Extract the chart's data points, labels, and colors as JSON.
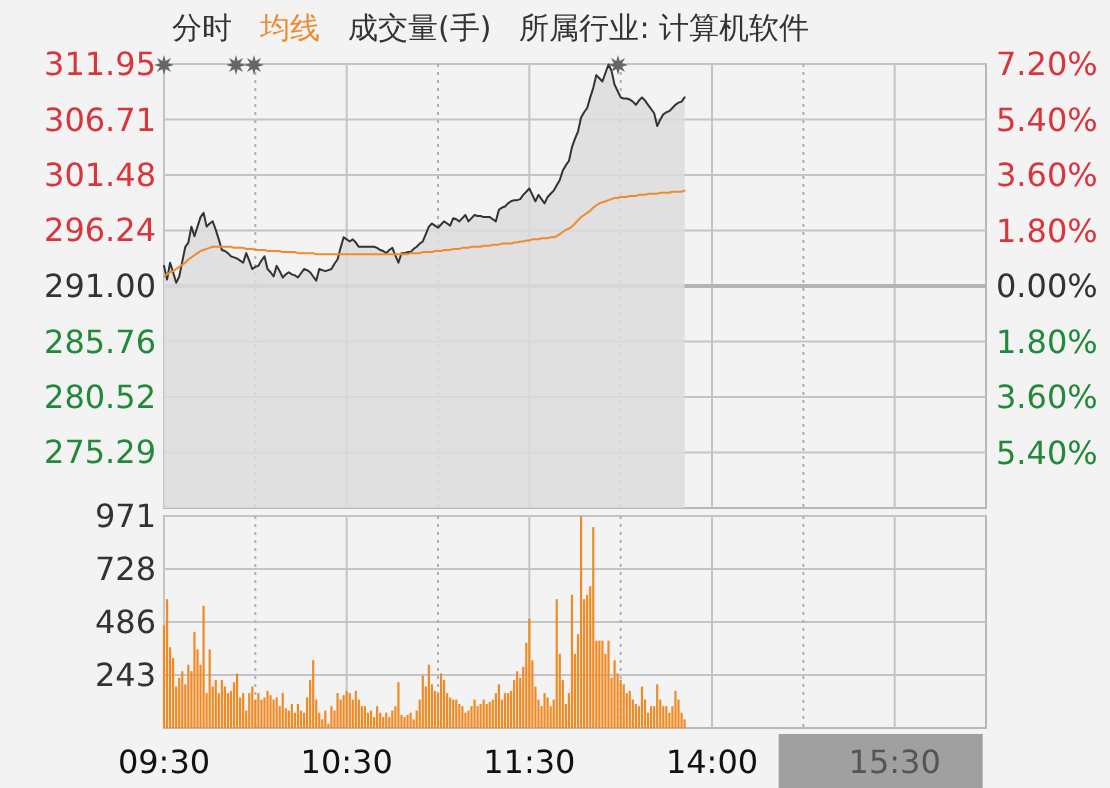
{
  "chart_data": [
    {
      "type": "line",
      "annotations": [
        "所属行业: 计算机软件"
      ],
      "legend": "top",
      "grid": true,
      "tick_labels": "y",
      "categories": [
        null,
        null,
        null,
        null,
        null,
        null,
        null,
        null,
        null,
        null,
        null,
        null,
        null,
        null,
        null,
        null,
        null,
        null,
        null,
        null,
        null,
        null,
        null,
        null,
        null,
        null,
        null,
        null,
        null,
        null,
        null,
        null,
        null,
        null,
        null,
        null,
        null,
        null,
        null,
        null,
        null,
        null,
        null,
        null,
        null,
        null,
        null,
        null,
        null,
        null,
        null,
        null,
        null,
        null,
        null,
        null,
        null,
        null,
        null,
        null,
        null,
        null,
        null,
        null,
        null,
        null,
        null,
        null,
        null,
        null,
        null,
        null,
        null,
        null,
        null,
        null,
        null,
        null,
        null,
        null,
        null,
        null,
        null,
        null,
        null,
        null,
        null,
        null,
        null,
        null,
        null,
        null,
        null,
        null,
        null,
        null,
        null,
        null,
        null,
        null,
        null,
        null,
        null,
        null,
        null,
        null,
        null,
        null,
        null,
        null,
        null,
        null,
        null,
        null,
        null,
        null,
        null,
        null,
        null,
        null,
        null,
        null,
        null,
        null,
        null,
        null,
        null,
        null,
        null,
        null,
        null,
        null,
        null,
        null,
        null,
        null,
        null,
        null,
        null,
        null,
        null,
        null,
        null,
        null,
        null,
        null,
        null,
        null,
        null,
        null,
        null,
        null,
        null,
        null,
        null,
        null,
        null,
        null,
        null,
        null,
        null,
        null,
        null,
        null,
        null,
        null,
        null,
        null,
        null,
        null,
        null,
        null,
        null,
        null,
        null,
        null,
        null,
        null,
        null,
        null,
        null,
        null,
        null,
        null,
        null,
        null,
        null,
        null,
        null,
        null,
        null,
        null,
        null,
        null,
        null,
        null,
        null,
        null,
        null,
        null,
        null,
        null,
        null,
        null,
        null,
        null,
        null,
        null,
        null,
        null,
        null,
        null,
        null,
        null,
        null,
        null,
        null,
        null,
        null,
        null,
        null,
        null,
        null,
        null,
        null,
        null,
        null,
        null,
        null,
        null,
        null,
        null,
        null,
        null,
        null,
        null,
        null,
        null,
        null,
        null,
        null,
        null,
        null,
        null,
        null,
        null,
        null,
        null,
        null,
        null,
        null,
        null,
        null,
        null,
        null,
        null,
        null,
        null,
        null,
        null,
        null,
        null,
        null,
        null,
        null,
        null,
        null,
        null,
        null,
        null,
        null
      ],
      "ylim": [
        270.05,
        311.95
      ],
      "yticks": [
        {
          "value": 275.29,
          "label": "275.29"
        },
        {
          "value": 280.52,
          "label": "280.52"
        },
        {
          "value": 285.76,
          "label": "285.76"
        },
        {
          "value": 291,
          "label": "291.00"
        },
        {
          "value": 296.24,
          "label": "296.24"
        },
        {
          "value": 301.48,
          "label": "301.48"
        },
        {
          "value": 306.71,
          "label": "306.71"
        },
        {
          "value": 311.95,
          "label": "311.95"
        }
      ],
      "y2lim": [
        -7.2,
        7.2
      ],
      "y2ticks": [
        {
          "value": -5.4,
          "label": "5.40%"
        },
        {
          "value": -3.6,
          "label": "3.60%"
        },
        {
          "value": -1.8,
          "label": "1.80%"
        },
        {
          "value": 0,
          "label": "0.00%"
        },
        {
          "value": 1.8,
          "label": "1.80%"
        },
        {
          "value": 3.6,
          "label": "3.60%"
        },
        {
          "value": 5.4,
          "label": "5.40%"
        },
        {
          "value": 7.2,
          "label": "7.20%"
        }
      ],
      "ref_lines": [
        {
          "axis": "y",
          "value": 291,
          "color": "#b4b4b4"
        }
      ],
      "series": [
        {
          "name": "分时",
          "type": "area",
          "color": "#333333",
          "values": [
            292.9,
            291.6,
            293.2,
            292.3,
            291.3,
            291.9,
            293.3,
            294.7,
            295.1,
            296.6,
            295.7,
            296.6,
            297.5,
            297.9,
            296.6,
            296.9,
            297.1,
            296.3,
            295.4,
            294.4,
            294.3,
            294.1,
            293.8,
            293.7,
            293.6,
            293.4,
            293.2,
            294.1,
            293.4,
            292.6,
            292.8,
            292.9,
            293.4,
            293.8,
            292.6,
            292.3,
            291.9,
            292.9,
            292.4,
            291.8,
            292.1,
            292.3,
            292.1,
            292,
            291.8,
            292.2,
            292.6,
            292.5,
            292.3,
            291.9,
            291.5,
            292.6,
            292.5,
            292.4,
            292.5,
            292.6,
            293.1,
            293.5,
            294.6,
            295.6,
            295.4,
            295.2,
            295.4,
            295.1,
            294.7,
            294.7,
            294.7,
            294.7,
            294.7,
            294.7,
            294.6,
            294.4,
            294.3,
            294.1,
            294.4,
            294.6,
            293.9,
            293.2,
            294.1,
            294.1,
            294.2,
            294.2,
            294.5,
            294.7,
            295,
            295.2,
            295.9,
            296.6,
            296.9,
            296.7,
            296.5,
            296.8,
            297.1,
            296.9,
            296.7,
            297.4,
            297.3,
            297.1,
            297.4,
            297.7,
            297.1,
            297.4,
            297.7,
            297.6,
            297.6,
            297.5,
            297.5,
            297.5,
            297.3,
            297.1,
            298.2,
            298.4,
            298.5,
            298.8,
            299,
            299.1,
            299.1,
            299.2,
            299.6,
            299.9,
            300.2,
            299.6,
            299,
            299.6,
            299.2,
            298.8,
            299.4,
            299.7,
            300,
            300.5,
            301,
            301.9,
            302.4,
            302.8,
            304.1,
            304.9,
            305.6,
            306.9,
            307.4,
            307.8,
            308.8,
            309.7,
            310.9,
            310.6,
            310.3,
            311.1,
            311.9,
            311.3,
            310,
            309.4,
            308.8,
            308.7,
            308.7,
            308.6,
            308.4,
            308.1,
            308.5,
            308.8,
            308.5,
            308.1,
            307.7,
            307.3,
            306.1,
            306.7,
            307.2,
            307.4,
            307.5,
            307.8,
            308.1,
            308.3,
            308.4,
            308.8,
            null,
            null,
            null,
            null,
            null,
            null,
            null,
            null,
            null,
            null,
            null,
            null,
            null,
            null,
            null,
            null,
            null,
            null,
            null,
            null,
            null,
            null,
            null,
            null,
            null,
            null,
            null,
            null,
            null,
            null,
            null,
            null,
            null,
            null,
            null,
            null,
            null,
            null,
            null,
            null,
            null,
            null,
            null,
            null,
            null,
            null,
            null,
            null,
            null,
            null,
            null,
            null,
            null,
            null,
            null,
            null,
            null,
            null,
            null,
            null,
            null,
            null,
            null,
            null,
            null,
            null,
            null,
            null,
            null,
            null,
            null,
            null,
            null,
            null,
            null,
            null,
            null,
            null,
            null,
            null,
            null,
            null,
            null,
            null,
            null,
            null,
            null,
            null,
            null,
            null,
            null,
            null,
            null,
            null,
            null,
            null,
            null,
            null,
            null
          ]
        },
        {
          "name": "均线",
          "color": "#ef8a2e",
          "values": [
            291.9,
            292.1,
            292.3,
            292.4,
            292.6,
            292.8,
            293,
            293.2,
            293.5,
            293.7,
            293.9,
            294.1,
            294.3,
            294.4,
            294.5,
            294.6,
            294.7,
            294.7,
            294.7,
            294.7,
            294.7,
            294.7,
            294.7,
            294.6,
            294.6,
            294.6,
            294.6,
            294.5,
            294.5,
            294.5,
            294.4,
            294.4,
            294.4,
            294.4,
            294.3,
            294.3,
            294.3,
            294.3,
            294.3,
            294.2,
            294.2,
            294.2,
            294.2,
            294.2,
            294.1,
            294.1,
            294.1,
            294.1,
            294.1,
            294.1,
            294,
            294,
            294,
            294,
            294,
            294,
            294,
            294,
            294,
            294,
            294,
            294,
            294,
            294,
            294,
            294,
            294,
            294,
            294,
            294,
            294,
            294,
            294,
            294,
            294,
            294,
            294,
            294,
            294,
            294,
            294,
            294.1,
            294.1,
            294.1,
            294.1,
            294.2,
            294.2,
            294.2,
            294.2,
            294.3,
            294.3,
            294.3,
            294.4,
            294.4,
            294.4,
            294.5,
            294.5,
            294.5,
            294.6,
            294.6,
            294.6,
            294.7,
            294.7,
            294.7,
            294.7,
            294.8,
            294.8,
            294.8,
            294.9,
            294.9,
            294.9,
            295,
            295,
            295,
            295,
            295.1,
            295.1,
            295.2,
            295.2,
            295.3,
            295.3,
            295.4,
            295.4,
            295.4,
            295.5,
            295.5,
            295.5,
            295.6,
            295.6,
            295.7,
            295.9,
            296.1,
            296.3,
            296.4,
            296.6,
            296.9,
            297.2,
            297.5,
            297.7,
            297.9,
            298.1,
            298.4,
            298.6,
            298.8,
            298.9,
            299,
            299.1,
            299.2,
            299.3,
            299.3,
            299.4,
            299.4,
            299.4,
            299.5,
            299.5,
            299.5,
            299.6,
            299.6,
            299.6,
            299.7,
            299.7,
            299.7,
            299.7,
            299.8,
            299.8,
            299.8,
            299.8,
            299.9,
            299.9,
            299.9,
            299.9,
            300,
            null,
            null,
            null,
            null,
            null,
            null,
            null,
            null,
            null,
            null,
            null,
            null,
            null,
            null,
            null,
            null,
            null,
            null,
            null,
            null,
            null,
            null,
            null,
            null,
            null,
            null,
            null,
            null,
            null,
            null,
            null,
            null,
            null,
            null,
            null,
            null,
            null,
            null,
            null,
            null,
            null,
            null,
            null,
            null,
            null,
            null,
            null,
            null,
            null,
            null,
            null,
            null,
            null,
            null,
            null,
            null,
            null,
            null,
            null,
            null,
            null,
            null,
            null,
            null,
            null,
            null,
            null,
            null,
            null,
            null,
            null,
            null,
            null,
            null,
            null,
            null,
            null,
            null,
            null,
            null,
            null,
            null,
            null,
            null,
            null,
            null,
            null,
            null,
            null,
            null,
            null,
            null,
            null,
            null,
            null,
            null,
            null,
            null,
            null
          ]
        }
      ]
    },
    {
      "type": "bar",
      "legend": "top",
      "grid": true,
      "categories": [
        "09:30",
        null,
        null,
        null,
        null,
        null,
        null,
        null,
        null,
        null,
        null,
        null,
        null,
        null,
        null,
        null,
        null,
        null,
        null,
        null,
        null,
        null,
        null,
        null,
        null,
        null,
        null,
        null,
        null,
        null,
        null,
        null,
        null,
        null,
        null,
        null,
        null,
        null,
        null,
        null,
        null,
        null,
        null,
        null,
        null,
        null,
        null,
        null,
        null,
        null,
        null,
        null,
        null,
        null,
        null,
        null,
        null,
        null,
        null,
        null,
        "10:30",
        null,
        null,
        null,
        null,
        null,
        null,
        null,
        null,
        null,
        null,
        null,
        null,
        null,
        null,
        null,
        null,
        null,
        null,
        null,
        null,
        null,
        null,
        null,
        null,
        null,
        null,
        null,
        null,
        null,
        null,
        null,
        null,
        null,
        null,
        null,
        null,
        null,
        null,
        null,
        null,
        null,
        null,
        null,
        null,
        null,
        null,
        null,
        null,
        null,
        null,
        null,
        null,
        null,
        null,
        null,
        null,
        null,
        null,
        null,
        "11:30",
        null,
        null,
        null,
        null,
        null,
        null,
        null,
        null,
        null,
        null,
        null,
        null,
        null,
        null,
        null,
        null,
        null,
        null,
        null,
        null,
        null,
        null,
        null,
        null,
        null,
        null,
        null,
        null,
        null,
        null,
        null,
        null,
        null,
        null,
        null,
        null,
        null,
        null,
        null,
        null,
        null,
        null,
        null,
        null,
        null,
        null,
        null,
        null,
        null,
        null,
        null,
        null,
        null,
        null,
        null,
        null,
        null,
        null,
        null,
        "14:00",
        null,
        null,
        null,
        null,
        null,
        null,
        null,
        null,
        null,
        null,
        null,
        null,
        null,
        null,
        null,
        null,
        null,
        null,
        null,
        null,
        null,
        null,
        null,
        null,
        null,
        null,
        null,
        null,
        null,
        null,
        null,
        null,
        null,
        null,
        null,
        null,
        null,
        null,
        null,
        null,
        null,
        null,
        null,
        null,
        null,
        null,
        null,
        null,
        null,
        null,
        null,
        null,
        null,
        null,
        null,
        null,
        null,
        null,
        null,
        "15:30",
        null,
        null,
        null,
        null,
        null,
        null,
        null,
        null,
        null,
        null,
        null,
        null,
        null,
        null,
        null,
        null,
        null,
        null,
        null,
        null,
        null,
        null,
        null,
        null,
        null,
        null,
        null,
        null,
        null,
        null
      ],
      "ylim": [
        0,
        971
      ],
      "yticks": [
        243,
        486,
        728,
        971
      ],
      "series": [
        {
          "name": "成交量(手)",
          "color": "#f08a24",
          "values": [
            470,
            590,
            370,
            320,
            190,
            230,
            260,
            200,
            290,
            260,
            440,
            360,
            290,
            560,
            160,
            360,
            190,
            220,
            160,
            220,
            190,
            160,
            170,
            210,
            250,
            140,
            160,
            80,
            160,
            190,
            130,
            160,
            130,
            140,
            170,
            150,
            130,
            140,
            100,
            160,
            90,
            80,
            110,
            70,
            110,
            80,
            70,
            140,
            220,
            310,
            130,
            70,
            40,
            80,
            20,
            100,
            80,
            160,
            130,
            150,
            170,
            160,
            130,
            170,
            130,
            100,
            100,
            70,
            80,
            50,
            100,
            70,
            50,
            70,
            50,
            80,
            100,
            210,
            60,
            50,
            60,
            70,
            40,
            80,
            130,
            240,
            190,
            290,
            200,
            170,
            160,
            250,
            220,
            160,
            140,
            130,
            130,
            110,
            100,
            70,
            80,
            100,
            130,
            100,
            110,
            130,
            110,
            120,
            130,
            160,
            200,
            130,
            160,
            160,
            170,
            220,
            260,
            230,
            280,
            390,
            500,
            310,
            190,
            130,
            100,
            160,
            140,
            100,
            130,
            590,
            340,
            220,
            110,
            160,
            610,
            340,
            430,
            970,
            590,
            610,
            650,
            920,
            400,
            400,
            400,
            340,
            400,
            230,
            310,
            250,
            220,
            200,
            160,
            170,
            130,
            110,
            100,
            190,
            130,
            70,
            100,
            100,
            200,
            130,
            100,
            100,
            70,
            100,
            170,
            130,
            70,
            40,
            null,
            null,
            null,
            null,
            null,
            null,
            null,
            null,
            null,
            null,
            null,
            null,
            null,
            null,
            null,
            null,
            null,
            null,
            null,
            null,
            null,
            null,
            null,
            null,
            null,
            null,
            null,
            null,
            null,
            null,
            null,
            null,
            null,
            null,
            null,
            null,
            null,
            null,
            null,
            null,
            null,
            null,
            null,
            null,
            null,
            null,
            null,
            null,
            null,
            null,
            null,
            null,
            null,
            null,
            null,
            null,
            null,
            null,
            null,
            null,
            null,
            null,
            null,
            null,
            null,
            null,
            null,
            null,
            null,
            null,
            null,
            null,
            null,
            null,
            null,
            null,
            null,
            null,
            null,
            null,
            null,
            null,
            null,
            null,
            null,
            null,
            null,
            null,
            null,
            null,
            null,
            null,
            null,
            null,
            null,
            null,
            null,
            null,
            null
          ]
        }
      ]
    }
  ]
}
